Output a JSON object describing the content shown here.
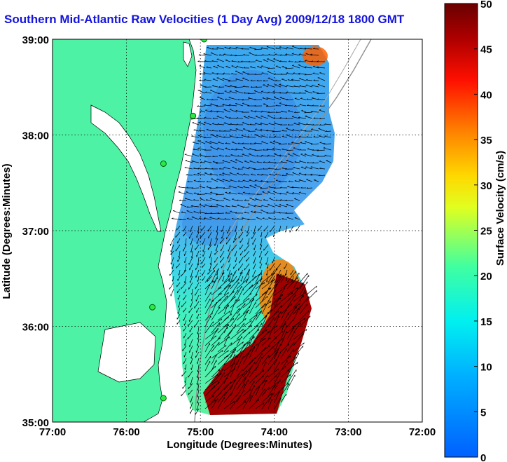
{
  "title": "Southern Mid-Atlantic Raw Velocities (1 Day Avg) 2009/12/18 1800 GMT",
  "xlabel": "Longitude (Degrees:Minutes)",
  "ylabel": "Latitude (Degrees:Minutes)",
  "x_ticks": [
    "77:00",
    "76:00",
    "75:00",
    "74:00",
    "73:00",
    "72:00"
  ],
  "y_ticks": [
    "39:00",
    "38:00",
    "37:00",
    "36:00",
    "35:00"
  ],
  "x_range": [
    -77.0,
    -72.0
  ],
  "y_range": [
    35.0,
    39.0
  ],
  "colorbar": {
    "label": "Surface Velocity (cm/s)",
    "ticks": [
      "50",
      "45",
      "40",
      "35",
      "30",
      "25",
      "20",
      "15",
      "10",
      "5",
      "0"
    ],
    "min": 0,
    "max": 50
  },
  "land_color": "#4ef2a4",
  "grid": true,
  "stations": [
    {
      "lon": -74.95,
      "lat": 39.0
    },
    {
      "lon": -75.1,
      "lat": 38.2
    },
    {
      "lon": -75.5,
      "lat": 37.7
    },
    {
      "lon": -75.65,
      "lat": 36.2
    },
    {
      "lon": -75.5,
      "lat": 35.25
    }
  ]
}
